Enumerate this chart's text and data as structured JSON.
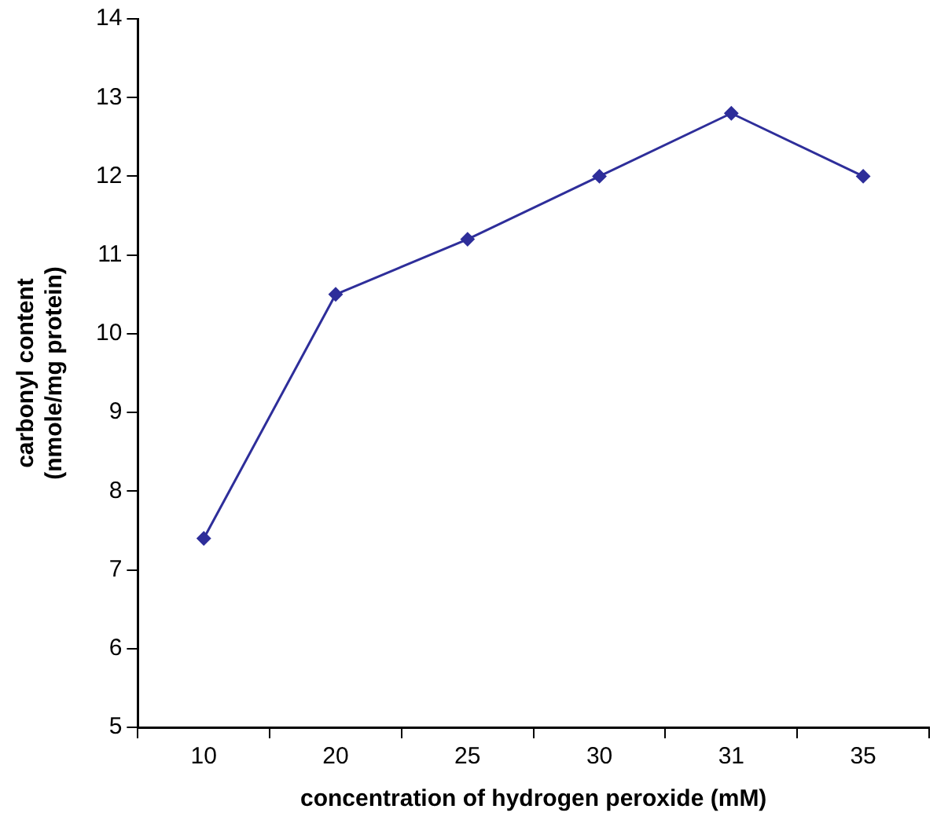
{
  "chart_data": {
    "type": "line",
    "xlabel": "concentration of hydrogen peroxide (mM)",
    "ylabel": "carbonyl content\n(nmole/mg protein)",
    "categories": [
      "10",
      "20",
      "25",
      "30",
      "31",
      "35"
    ],
    "series": [
      {
        "color": "#2e2e9a",
        "values": [
          7.4,
          10.5,
          11.2,
          12.0,
          12.8,
          12.0
        ]
      }
    ],
    "ylim": [
      5,
      14
    ],
    "yticks": [
      5,
      6,
      7,
      8,
      9,
      10,
      11,
      12,
      13,
      14
    ],
    "grid": false,
    "legend": false,
    "marker": "diamond",
    "line_style": "solid"
  }
}
